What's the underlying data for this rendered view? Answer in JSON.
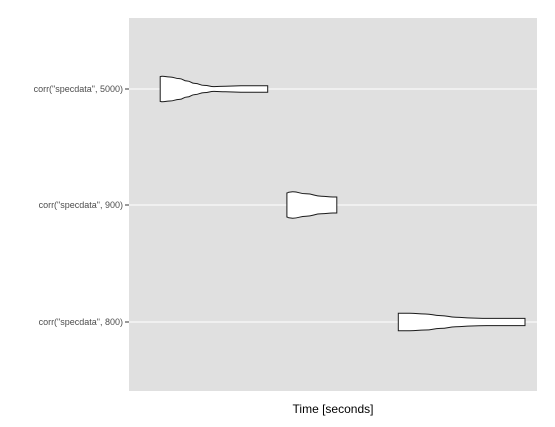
{
  "chart_data": {
    "type": "violin",
    "orientation": "horizontal",
    "xlabel": "Time [seconds]",
    "ylabel": "",
    "categories": [
      "corr(\"specdata\", 5000)",
      "corr(\"specdata\", 900)",
      "corr(\"specdata\", 800)"
    ],
    "x_tick_labels": [],
    "grid": true,
    "legend": "none",
    "colors": {
      "panel_background": "#e0e0e0",
      "grid": "#ffffff",
      "violin_fill": "#ffffff",
      "violin_stroke": "#1a1a1a"
    },
    "xlim": [
      0,
      1
    ],
    "series": [
      {
        "category": "corr(\"specdata\", 5000)",
        "min": 0.05,
        "max": 0.33,
        "profile": [
          [
            0.05,
            0.31
          ],
          [
            0.055,
            0.32
          ],
          [
            0.075,
            0.3
          ],
          [
            0.1,
            0.26
          ],
          [
            0.12,
            0.2
          ],
          [
            0.14,
            0.14
          ],
          [
            0.165,
            0.09
          ],
          [
            0.19,
            0.06
          ],
          [
            0.22,
            0.07
          ],
          [
            0.26,
            0.08
          ],
          [
            0.33,
            0.08
          ]
        ]
      },
      {
        "category": "corr(\"specdata\", 900)",
        "min": 0.38,
        "max": 0.51,
        "profile": [
          [
            0.38,
            0.3
          ],
          [
            0.385,
            0.32
          ],
          [
            0.395,
            0.33
          ],
          [
            0.43,
            0.28
          ],
          [
            0.47,
            0.22
          ],
          [
            0.5,
            0.2
          ],
          [
            0.51,
            0.2
          ]
        ]
      },
      {
        "category": "corr(\"specdata\", 800)",
        "min": 0.67,
        "max": 1.0,
        "profile": [
          [
            0.67,
            0.22
          ],
          [
            0.7,
            0.22
          ],
          [
            0.74,
            0.2
          ],
          [
            0.78,
            0.16
          ],
          [
            0.82,
            0.12
          ],
          [
            0.86,
            0.1
          ],
          [
            0.9,
            0.09
          ],
          [
            1.0,
            0.09
          ]
        ]
      }
    ]
  }
}
